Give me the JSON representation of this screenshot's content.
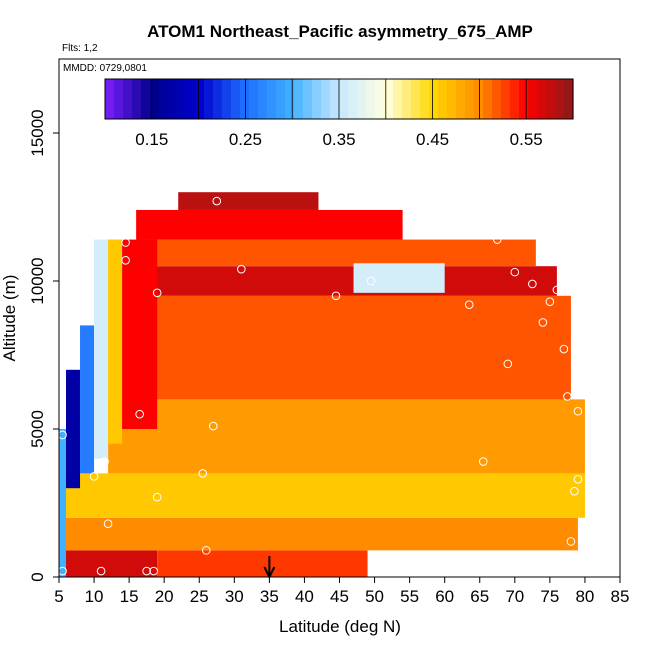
{
  "chart_data": {
    "type": "heatmap",
    "title": "ATOM1 Northeast_Pacific asymmetry_675_AMP",
    "flights_label": "Flts: 1,2",
    "dates_label": "MMDD: 0729,0801",
    "xlabel": "Latitude (deg N)",
    "ylabel": "Altitude (m)",
    "xlim": [
      5,
      85
    ],
    "ylim": [
      0,
      17500
    ],
    "x_ticks": [
      5,
      10,
      15,
      20,
      25,
      30,
      35,
      40,
      45,
      50,
      55,
      60,
      65,
      70,
      75,
      80,
      85
    ],
    "y_ticks": [
      0,
      5000,
      10000,
      15000
    ],
    "colorbar": {
      "range": [
        0.1,
        0.6
      ],
      "ticks": [
        0.15,
        0.25,
        0.35,
        0.45,
        0.55
      ],
      "stops": [
        "#7f1fff",
        "#00008b",
        "#0000cd",
        "#1e6fff",
        "#40b0ff",
        "#c8e8ff",
        "#ffffe0",
        "#ffd700",
        "#ff8c00",
        "#ff0000",
        "#8b1a1a"
      ]
    },
    "arrow_latitude": 35,
    "profiles": [
      {
        "lat_range": [
          5,
          6
        ],
        "alt_range": [
          0,
          5000
        ],
        "value": 0.3
      },
      {
        "lat_range": [
          6,
          8
        ],
        "alt_range": [
          3000,
          7000
        ],
        "value": 0.17
      },
      {
        "lat_range": [
          8,
          10
        ],
        "alt_range": [
          3500,
          8500
        ],
        "value": 0.26
      },
      {
        "lat_range": [
          10,
          12
        ],
        "alt_range": [
          4000,
          11400
        ],
        "value": 0.36
      },
      {
        "lat_range": [
          12,
          14
        ],
        "alt_range": [
          4500,
          11400
        ],
        "value": 0.46
      },
      {
        "lat_range": [
          14,
          19
        ],
        "alt_range": [
          5000,
          11400
        ],
        "value": 0.55
      }
    ],
    "bands": [
      {
        "alt_range": [
          0,
          900
        ],
        "lat_range": [
          5,
          19
        ],
        "value": 0.57
      },
      {
        "alt_range": [
          0,
          900
        ],
        "lat_range": [
          19,
          49
        ],
        "value": 0.53
      },
      {
        "alt_range": [
          900,
          2000
        ],
        "lat_range": [
          5,
          79
        ],
        "value": 0.5
      },
      {
        "alt_range": [
          2000,
          3500
        ],
        "lat_range": [
          5,
          80
        ],
        "value": 0.46
      },
      {
        "alt_range": [
          3500,
          6000
        ],
        "lat_range": [
          12,
          80
        ],
        "value": 0.49
      },
      {
        "alt_range": [
          6000,
          9500
        ],
        "lat_range": [
          18,
          78
        ],
        "value": 0.52
      },
      {
        "alt_range": [
          9500,
          10500
        ],
        "lat_range": [
          17,
          76
        ],
        "value": 0.57
      },
      {
        "alt_range": [
          10500,
          11400
        ],
        "lat_range": [
          16,
          73
        ],
        "value": 0.52
      },
      {
        "alt_range": [
          11400,
          12400
        ],
        "lat_range": [
          16,
          54
        ],
        "value": 0.55
      },
      {
        "alt_range": [
          12400,
          13000
        ],
        "lat_range": [
          22,
          42
        ],
        "value": 0.58
      },
      {
        "alt_range": [
          9600,
          10600
        ],
        "lat_range": [
          47,
          60
        ],
        "value": 0.36
      }
    ],
    "observations": [
      {
        "lat": 5.5,
        "alt": 4800
      },
      {
        "lat": 5.5,
        "alt": 200
      },
      {
        "lat": 8.5,
        "alt": 11300
      },
      {
        "lat": 10,
        "alt": 3400
      },
      {
        "lat": 11,
        "alt": 200
      },
      {
        "lat": 11.5,
        "alt": 3900
      },
      {
        "lat": 12,
        "alt": 1800
      },
      {
        "lat": 14.5,
        "alt": 11300
      },
      {
        "lat": 14.5,
        "alt": 10700
      },
      {
        "lat": 16.5,
        "alt": 5500
      },
      {
        "lat": 17.5,
        "alt": 200
      },
      {
        "lat": 18.5,
        "alt": 200
      },
      {
        "lat": 19,
        "alt": 9600
      },
      {
        "lat": 19,
        "alt": 2700
      },
      {
        "lat": 25.5,
        "alt": 3500
      },
      {
        "lat": 26,
        "alt": 900
      },
      {
        "lat": 27,
        "alt": 5100
      },
      {
        "lat": 27.5,
        "alt": 12700
      },
      {
        "lat": 31,
        "alt": 10400
      },
      {
        "lat": 44.5,
        "alt": 9500
      },
      {
        "lat": 49.5,
        "alt": 10000
      },
      {
        "lat": 63.5,
        "alt": 9200
      },
      {
        "lat": 65.5,
        "alt": 3900
      },
      {
        "lat": 67.5,
        "alt": 11400
      },
      {
        "lat": 69,
        "alt": 7200
      },
      {
        "lat": 70,
        "alt": 10300
      },
      {
        "lat": 72.5,
        "alt": 9900
      },
      {
        "lat": 74,
        "alt": 8600
      },
      {
        "lat": 75,
        "alt": 9300
      },
      {
        "lat": 76,
        "alt": 9700
      },
      {
        "lat": 77,
        "alt": 7700
      },
      {
        "lat": 77.5,
        "alt": 6100
      },
      {
        "lat": 78,
        "alt": 1200
      },
      {
        "lat": 78.5,
        "alt": 2900
      },
      {
        "lat": 79,
        "alt": 3300
      },
      {
        "lat": 79,
        "alt": 5600
      }
    ]
  }
}
